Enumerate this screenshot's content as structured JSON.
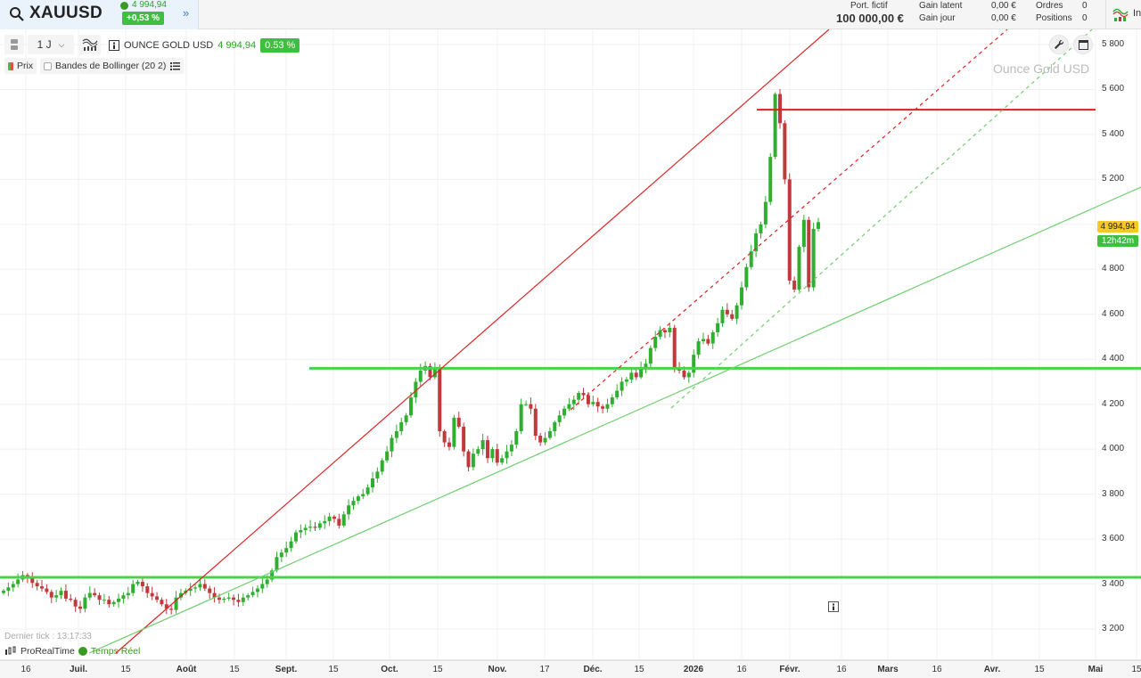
{
  "header": {
    "symbol": "XAUUSD",
    "last_price": "4 994,94",
    "change_pct": "+0,53 %",
    "more_icon": "double-chevron-right-icon",
    "portfolio_label": "Port. fictif",
    "portfolio_value": "100 000,00 €",
    "gain_latent_label": "Gain latent",
    "gain_latent_value": "0,00 €",
    "gain_jour_label": "Gain jour",
    "gain_jour_value": "0,00 €",
    "ordres_label": "Ordres",
    "ordres_value": "0",
    "positions_label": "Positions",
    "positions_value": "0",
    "indicators_label": "In"
  },
  "toolbar": {
    "timeframe": "1 J",
    "instrument_name": "OUNCE GOLD USD",
    "instrument_price": "4 994,94",
    "instrument_pct": "0.53 %",
    "legend_price": "Prix",
    "legend_bollinger": "Bandes de Bollinger (20 2)"
  },
  "chart": {
    "watermark": "Ounce Gold USD",
    "price_tag": "4 994,94",
    "time_tag": "12h42m",
    "last_tick": "Dernier tick : 13:17:33",
    "brand": "ProRealTime",
    "realtime": "Temps Réel"
  },
  "colors": {
    "up": "#2fae2f",
    "down": "#c0393b",
    "resistance_red": "#e02020",
    "support_green": "#4cd14c",
    "trend_green": "#6fcf6f"
  },
  "chart_data": {
    "type": "candlestick",
    "title": "Ounce Gold USD (XAUUSD) — 1 J",
    "xlabel": "",
    "ylabel": "",
    "y_ticks": [
      3200,
      3400,
      3600,
      3800,
      4000,
      4200,
      4400,
      4600,
      4800,
      5000,
      5200,
      5400,
      5600,
      5800
    ],
    "y_tick_labels": [
      "3 200",
      "3 400",
      "3 600",
      "3 800",
      "4 000",
      "4 200",
      "4 400",
      "4 600",
      "4 800",
      "",
      "5 200",
      "5 400",
      "5 600",
      "5 800"
    ],
    "ylim": [
      3020,
      5830
    ],
    "x_tick_labels": [
      {
        "label": "16",
        "x": 29,
        "bold": false
      },
      {
        "label": "Juil.",
        "x": 88,
        "bold": true
      },
      {
        "label": "15",
        "x": 141,
        "bold": false
      },
      {
        "label": "Août",
        "x": 209,
        "bold": true
      },
      {
        "label": "15",
        "x": 263,
        "bold": false
      },
      {
        "label": "Sept.",
        "x": 321,
        "bold": true
      },
      {
        "label": "15",
        "x": 374,
        "bold": false
      },
      {
        "label": "Oct.",
        "x": 437,
        "bold": true
      },
      {
        "label": "15",
        "x": 491,
        "bold": false
      },
      {
        "label": "Nov.",
        "x": 558,
        "bold": true
      },
      {
        "label": "17",
        "x": 611,
        "bold": false
      },
      {
        "label": "Déc.",
        "x": 665,
        "bold": true
      },
      {
        "label": "15",
        "x": 717,
        "bold": false
      },
      {
        "label": "2026",
        "x": 778,
        "bold": true
      },
      {
        "label": "16",
        "x": 832,
        "bold": false
      },
      {
        "label": "Févr.",
        "x": 886,
        "bold": true
      },
      {
        "label": "16",
        "x": 944,
        "bold": false
      },
      {
        "label": "Mars",
        "x": 996,
        "bold": true
      },
      {
        "label": "16",
        "x": 1051,
        "bold": false
      },
      {
        "label": "Avr.",
        "x": 1113,
        "bold": true
      },
      {
        "label": "15",
        "x": 1166,
        "bold": false
      },
      {
        "label": "Mai",
        "x": 1229,
        "bold": true
      },
      {
        "label": "15",
        "x": 1275,
        "bold": false
      }
    ],
    "series": [
      {
        "name": "XAUUSD daily (approx. closes)",
        "x_start": "mi-juin 2025",
        "x_end": "févr. 2026",
        "values": [
          3370,
          3385,
          3400,
          3420,
          3440,
          3430,
          3405,
          3390,
          3380,
          3365,
          3340,
          3350,
          3370,
          3335,
          3330,
          3300,
          3290,
          3340,
          3360,
          3350,
          3330,
          3330,
          3310,
          3320,
          3335,
          3350,
          3360,
          3400,
          3410,
          3390,
          3360,
          3345,
          3330,
          3310,
          3290,
          3285,
          3340,
          3360,
          3370,
          3380,
          3385,
          3400,
          3380,
          3360,
          3340,
          3330,
          3335,
          3340,
          3330,
          3320,
          3340,
          3350,
          3365,
          3380,
          3400,
          3420,
          3460,
          3520,
          3540,
          3560,
          3590,
          3630,
          3640,
          3650,
          3655,
          3650,
          3670,
          3680,
          3700,
          3690,
          3660,
          3710,
          3750,
          3770,
          3790,
          3800,
          3830,
          3870,
          3900,
          3950,
          3990,
          4050,
          4080,
          4120,
          4150,
          4230,
          4300,
          4350,
          4370,
          4320,
          4360,
          4080,
          4030,
          4010,
          4140,
          4100,
          3990,
          3920,
          3980,
          4000,
          4040,
          3960,
          4000,
          3940,
          3960,
          3990,
          4020,
          4080,
          4200,
          4200,
          4180,
          4060,
          4030,
          4050,
          4080,
          4120,
          4150,
          4180,
          4200,
          4220,
          4250,
          4240,
          4200,
          4210,
          4190,
          4180,
          4200,
          4230,
          4260,
          4300,
          4310,
          4340,
          4320,
          4360,
          4380,
          4450,
          4500,
          4530,
          4520,
          4540,
          4360,
          4350,
          4320,
          4340,
          4420,
          4480,
          4490,
          4470,
          4520,
          4560,
          4620,
          4600,
          4580,
          4640,
          4720,
          4810,
          4880,
          4960,
          5000,
          5100,
          5300,
          5580,
          5450,
          5200,
          4750,
          4710,
          4900,
          5020,
          4720,
          4980,
          5010
        ]
      },
      {
        "name": "Support 3430",
        "type": "hline",
        "value": 3430,
        "color": "#4cd14c"
      },
      {
        "name": "Support 4360",
        "type": "hline",
        "value": 4360,
        "color": "#4cd14c"
      },
      {
        "name": "Résistance 5510",
        "type": "hline",
        "value": 5510,
        "color": "#e02020"
      },
      {
        "name": "Trend line rouge",
        "type": "line",
        "color": "#e02020"
      },
      {
        "name": "Trend line rouge pointillée",
        "type": "dashed",
        "color": "#e02020"
      },
      {
        "name": "Trend line verte",
        "type": "line",
        "color": "#6fcf6f"
      },
      {
        "name": "Trend line verte pointillée",
        "type": "dashed",
        "color": "#6fcf6f"
      }
    ],
    "grid": true,
    "legend_position": "top-left",
    "last_value": 4994.94
  }
}
